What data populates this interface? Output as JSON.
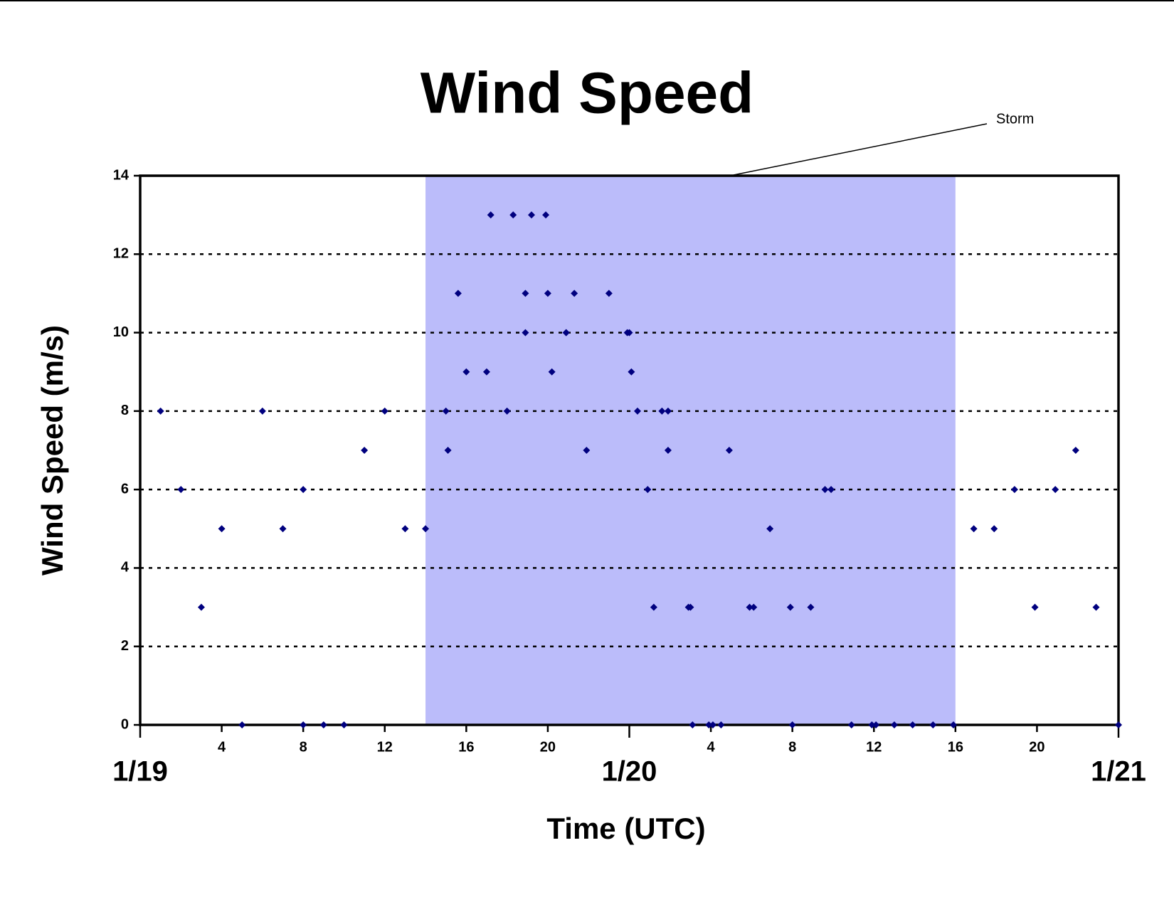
{
  "chart_data": {
    "type": "scatter",
    "title": "Wind Speed",
    "xlabel": "Time (UTC)",
    "ylabel": "Wind Speed (m/s)",
    "annotation": "Storm",
    "shaded_range": [
      14,
      40
    ],
    "shade_color": "#bbbcfa",
    "grid": true,
    "xlim": [
      0,
      48
    ],
    "ylim": [
      0,
      14
    ],
    "yticks": [
      0,
      2,
      4,
      6,
      8,
      10,
      12,
      14
    ],
    "xticks": [
      4,
      8,
      12,
      16,
      20,
      {
        "value": 28,
        "label": "4"
      },
      {
        "value": 32,
        "label": "8"
      },
      {
        "value": 36,
        "label": "12"
      },
      {
        "value": 40,
        "label": "16"
      },
      {
        "value": 44,
        "label": "20"
      }
    ],
    "date_ticks": [
      {
        "value": 0,
        "label": "1/19"
      },
      {
        "value": 24,
        "label": "1/20"
      },
      {
        "value": 48,
        "label": "1/21"
      }
    ],
    "series": [
      {
        "name": "Wind Speed",
        "color": "#00007f",
        "x": [
          1,
          2,
          3,
          4,
          5,
          6,
          7,
          8,
          8,
          9,
          10,
          11,
          12,
          13,
          14,
          15,
          15.1,
          15.6,
          16,
          17,
          17.2,
          18,
          18.3,
          18.9,
          18.9,
          19.2,
          19.9,
          20,
          20.2,
          20.9,
          20.9,
          21.3,
          21.9,
          23,
          23.9,
          24,
          24.1,
          24.4,
          24.9,
          25.2,
          25.6,
          25.9,
          25.9,
          26.9,
          27,
          27.1,
          27.9,
          28.1,
          28.5,
          28.9,
          29.9,
          30.1,
          30.9,
          31.9,
          32,
          32.9,
          33.6,
          33.9,
          34.9,
          35.9,
          36.1,
          37,
          37.9,
          38.9,
          39.9,
          40.9,
          41.9,
          42.9,
          43.9,
          44.9,
          45.9,
          46.9,
          48
        ],
        "values": [
          8,
          6,
          3,
          5,
          0,
          8,
          5,
          6,
          0,
          0,
          0,
          7,
          8,
          5,
          5,
          8,
          7,
          11,
          9,
          9,
          13,
          8,
          13,
          11,
          10,
          13,
          13,
          11,
          9,
          10,
          10,
          11,
          7,
          11,
          10,
          10,
          9,
          8,
          6,
          3,
          8,
          8,
          7,
          3,
          3,
          0,
          0,
          0,
          0,
          7,
          3,
          3,
          5,
          3,
          0,
          3,
          6,
          6,
          0,
          0,
          0,
          0,
          0,
          0,
          0,
          5,
          5,
          6,
          3,
          6,
          7,
          3,
          0
        ]
      }
    ]
  }
}
